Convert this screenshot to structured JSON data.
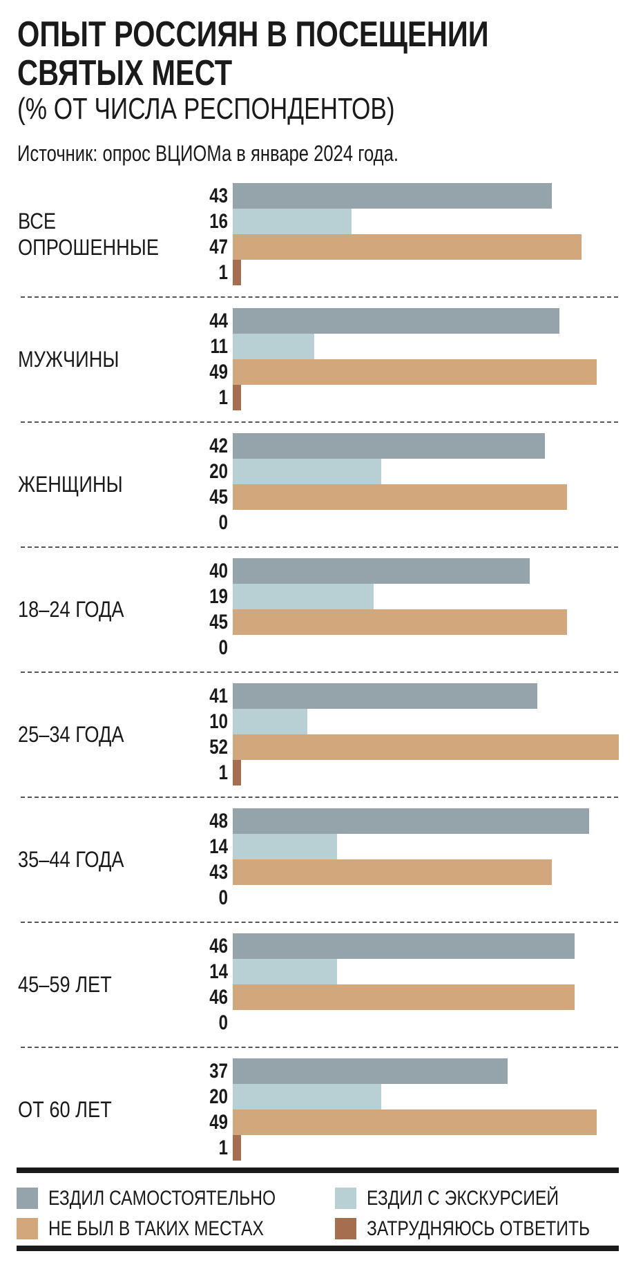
{
  "chart_data": {
    "type": "bar",
    "orientation": "horizontal",
    "title": "ОПЫТ РОССИЯН В ПОСЕЩЕНИИ СВЯТЫХ МЕСТ",
    "title_lines": [
      "ОПЫТ РОССИЯН В ПОСЕЩЕНИИ",
      "СВЯТЫХ МЕСТ"
    ],
    "subtitle": "(% ОТ ЧИСЛА РЕСПОНДЕНТОВ)",
    "source": "Источник: опрос ВЦИОМа в январе 2024 года.",
    "categories": [
      [
        "ВСЕ",
        "ОПРОШЕННЫЕ"
      ],
      [
        "МУЖЧИНЫ"
      ],
      [
        "ЖЕНЩИНЫ"
      ],
      [
        "18–24 ГОДА"
      ],
      [
        "25–34 ГОДА"
      ],
      [
        "35–44 ГОДА"
      ],
      [
        "45–59 ЛЕТ"
      ],
      [
        "ОТ 60 ЛЕТ"
      ]
    ],
    "series": [
      {
        "name": "ЕЗДИЛ САМОСТОЯТЕЛЬНО",
        "color": "#95a4aa",
        "values": [
          43,
          44,
          42,
          40,
          41,
          48,
          46,
          37
        ]
      },
      {
        "name": "ЕЗДИЛ С ЭКСКУРСИЕЙ",
        "color": "#b8d0d3",
        "values": [
          16,
          11,
          20,
          19,
          10,
          14,
          14,
          20
        ]
      },
      {
        "name": "НЕ БЫЛ В ТАКИХ МЕСТАХ",
        "color": "#d2a77b",
        "values": [
          47,
          49,
          45,
          45,
          52,
          43,
          46,
          49
        ]
      },
      {
        "name": "ЗАТРУДНЯЮСЬ ОТВЕТИТЬ",
        "color": "#a56f4f",
        "values": [
          1,
          1,
          0,
          0,
          1,
          0,
          0,
          1
        ]
      }
    ],
    "legend_order": [
      0,
      2,
      1,
      3
    ],
    "xlim": [
      0,
      52
    ],
    "grid": false,
    "legend_placement": "bottom"
  }
}
